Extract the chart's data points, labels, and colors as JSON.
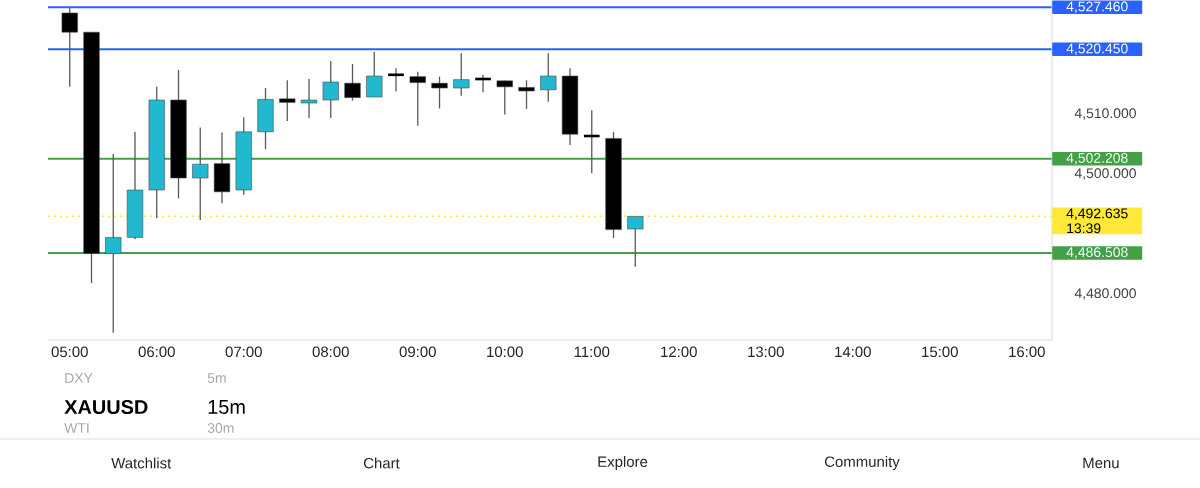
{
  "chart_data": {
    "type": "candlestick",
    "x": [
      5.0,
      5.25,
      5.5,
      5.75,
      6.0,
      6.25,
      6.5,
      6.75,
      7.0,
      7.25,
      7.5,
      7.75,
      8.0,
      8.25,
      8.5,
      8.75,
      9.0,
      9.25,
      9.5,
      9.75,
      10.0,
      10.25,
      10.5,
      10.75,
      11.0,
      11.25,
      11.5
    ],
    "ohlc": [
      [
        4526.5,
        4527.4,
        4514.2,
        4523.3
      ],
      [
        4523.3,
        4523.3,
        4481.5,
        4486.4
      ],
      [
        4486.4,
        4503.0,
        4473.2,
        4489.1
      ],
      [
        4489.1,
        4506.7,
        4488.8,
        4497.0
      ],
      [
        4497.0,
        4514.2,
        4492.3,
        4512.0
      ],
      [
        4512.0,
        4517.0,
        4495.6,
        4499.0
      ],
      [
        4499.0,
        4507.4,
        4492.0,
        4501.3
      ],
      [
        4501.4,
        4506.6,
        4494.8,
        4496.7
      ],
      [
        4497.0,
        4509.1,
        4496.2,
        4506.7
      ],
      [
        4506.7,
        4514.0,
        4503.8,
        4512.1
      ],
      [
        4512.2,
        4515.3,
        4508.5,
        4511.6
      ],
      [
        4511.5,
        4515.5,
        4509.0,
        4512.0
      ],
      [
        4512.0,
        4518.5,
        4509.0,
        4515.0
      ],
      [
        4514.8,
        4518.0,
        4511.9,
        4512.4
      ],
      [
        4512.5,
        4520.0,
        4512.5,
        4516.0
      ],
      [
        4516.2,
        4517.3,
        4513.4,
        4516.2
      ],
      [
        4515.9,
        4516.7,
        4507.7,
        4514.9
      ],
      [
        4514.8,
        4515.9,
        4510.6,
        4514.0
      ],
      [
        4514.0,
        4519.8,
        4512.7,
        4515.4
      ],
      [
        4515.5,
        4516.2,
        4513.3,
        4515.5
      ],
      [
        4515.2,
        4515.2,
        4509.6,
        4514.2
      ],
      [
        4514.1,
        4515.3,
        4510.5,
        4513.5
      ],
      [
        4513.7,
        4519.8,
        4511.7,
        4516.0
      ],
      [
        4516.0,
        4517.3,
        4504.5,
        4506.3
      ],
      [
        4506.0,
        4510.3,
        4499.8,
        4506.0
      ],
      [
        4505.6,
        4506.7,
        4489.0,
        4490.4
      ],
      [
        4490.5,
        4492.6,
        4484.2,
        4492.6
      ]
    ],
    "colors": [
      "#000000",
      "#000000",
      "#22b8cf",
      "#22b8cf",
      "#22b8cf",
      "#000000",
      "#22b8cf",
      "#000000",
      "#22b8cf",
      "#22b8cf",
      "#000000",
      "#22b8cf",
      "#22b8cf",
      "#000000",
      "#22b8cf",
      "#000000",
      "#000000",
      "#000000",
      "#22b8cf",
      "#000000",
      "#000000",
      "#000000",
      "#22b8cf",
      "#000000",
      "#000000",
      "#000000",
      "#22b8cf"
    ],
    "xlim": [
      4.75,
      16.29
    ],
    "ylim": [
      4472,
      4528.67
    ],
    "xticks": [
      {
        "value": 5,
        "label": "05:00"
      },
      {
        "value": 6,
        "label": "06:00"
      },
      {
        "value": 7,
        "label": "07:00"
      },
      {
        "value": 8,
        "label": "08:00"
      },
      {
        "value": 9,
        "label": "09:00"
      },
      {
        "value": 10,
        "label": "10:00"
      },
      {
        "value": 11,
        "label": "11:00"
      },
      {
        "value": 12,
        "label": "12:00"
      },
      {
        "value": 13,
        "label": "13:00"
      },
      {
        "value": 14,
        "label": "14:00"
      },
      {
        "value": 15,
        "label": "15:00"
      },
      {
        "value": 16,
        "label": "16:00"
      }
    ],
    "yticks": [
      {
        "value": 4480,
        "label": "4,480.000"
      },
      {
        "value": 4500,
        "label": "4,500.000"
      },
      {
        "value": 4510,
        "label": "4,510.000"
      }
    ],
    "ref_lines": [
      {
        "axis": "y",
        "value": 4527.46,
        "label": "4,527.460",
        "color": "#2962ff",
        "line_style": "solid"
      },
      {
        "axis": "y",
        "value": 4520.45,
        "label": "4,520.450",
        "color": "#2962ff",
        "line_style": "solid"
      },
      {
        "axis": "y",
        "value": 4502.208,
        "label": "4,502.208",
        "color": "#43a047",
        "line_style": "solid"
      },
      {
        "axis": "y",
        "value": 4486.508,
        "label": "4,486.508",
        "color": "#43a047",
        "line_style": "solid"
      },
      {
        "axis": "y",
        "value": 4492.635,
        "label": "4,492.635",
        "color": "#ffe838",
        "line_style": "dotted"
      }
    ],
    "annotations": [
      "13:39",
      "XAUUSD",
      "15m",
      "DXY",
      "5m",
      "WTI",
      "30m",
      "Watchlist",
      "Chart",
      "Explore",
      "Community",
      "Menu"
    ]
  }
}
